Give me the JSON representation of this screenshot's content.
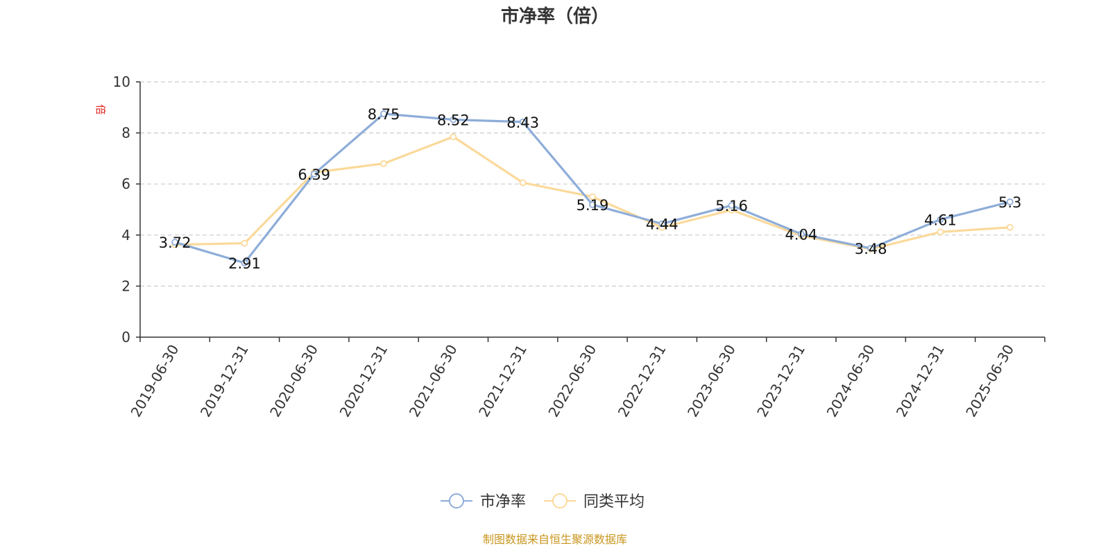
{
  "chart_data": {
    "type": "line",
    "title": "市净率（倍）",
    "ylabel": "倍",
    "ylim": [
      0,
      10
    ],
    "yticks": [
      0,
      2,
      4,
      6,
      8,
      10
    ],
    "grid": true,
    "legend_position": "bottom-center",
    "categories": [
      "2019-06-30",
      "2019-12-31",
      "2020-06-30",
      "2020-12-31",
      "2021-06-30",
      "2021-12-31",
      "2022-06-30",
      "2022-12-31",
      "2023-06-30",
      "2023-12-31",
      "2024-06-30",
      "2024-12-31",
      "2025-06-30"
    ],
    "series": [
      {
        "name": "市净率",
        "color": "#8eadd9",
        "values": [
          3.72,
          2.91,
          6.39,
          8.75,
          8.52,
          8.43,
          5.19,
          4.44,
          5.16,
          4.04,
          3.48,
          4.61,
          5.3
        ],
        "labels": [
          "3.72",
          "2.91",
          "6.39",
          "8.75",
          "8.52",
          "8.43",
          "5.19",
          "4.44",
          "5.16",
          "4.04",
          "3.48",
          "4.61",
          "5.3"
        ]
      },
      {
        "name": "同类平均",
        "color": "#fbd99a",
        "values": [
          3.62,
          3.68,
          6.45,
          6.8,
          7.85,
          6.05,
          5.5,
          4.3,
          4.98,
          3.98,
          3.45,
          4.12,
          4.3
        ]
      }
    ]
  },
  "source_note": "制图数据来自恒生聚源数据库"
}
